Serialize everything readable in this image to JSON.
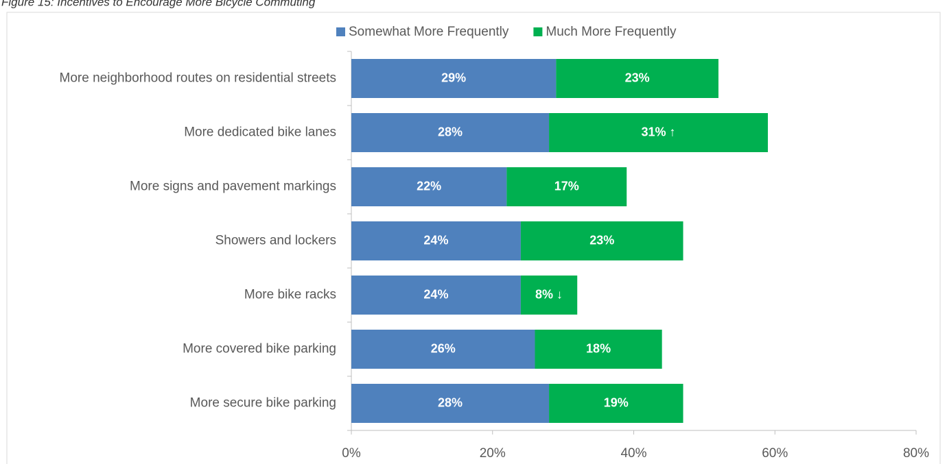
{
  "chart_data": {
    "type": "stacked-bar-horizontal",
    "title": "Figure 15: Incentives to Encourage More Bicycle Commuting",
    "categories": [
      "More neighborhood routes on residential streets",
      "More dedicated bike lanes",
      "More signs and pavement markings",
      "Showers and lockers",
      "More bike racks",
      "More covered bike parking",
      "More secure bike parking"
    ],
    "series": [
      {
        "name": "Somewhat More Frequently",
        "color": "#4f81bd",
        "values": [
          29,
          28,
          22,
          24,
          24,
          26,
          28
        ],
        "value_labels": [
          "29%",
          "28%",
          "22%",
          "24%",
          "24%",
          "26%",
          "28%"
        ]
      },
      {
        "name": "Much More Frequently",
        "color": "#00b050",
        "values": [
          23,
          31,
          17,
          23,
          8,
          18,
          19
        ],
        "value_labels": [
          "23%",
          "31% ↑",
          "17%",
          "23%",
          "8% ↓",
          "18%",
          "19%"
        ]
      }
    ],
    "xlim": [
      0,
      80
    ],
    "xticks": [
      {
        "value": 0,
        "label": "0%"
      },
      {
        "value": 20,
        "label": "20%"
      },
      {
        "value": 40,
        "label": "40%"
      },
      {
        "value": 60,
        "label": "60%"
      },
      {
        "value": 80,
        "label": "80%"
      }
    ],
    "legend": "top"
  }
}
